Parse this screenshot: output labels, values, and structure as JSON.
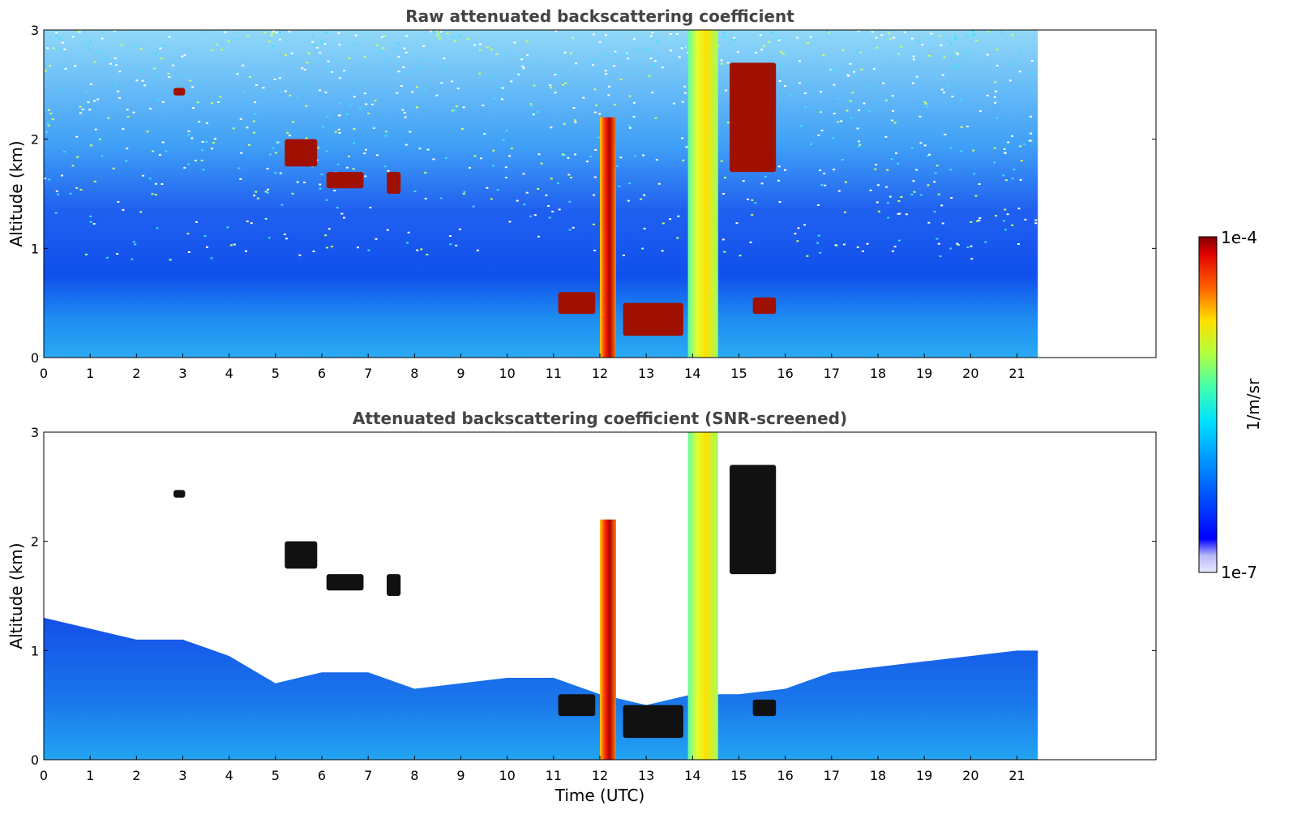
{
  "chart_data": [
    {
      "type": "heatmap",
      "title": "Raw attenuated backscattering coefficient",
      "xlabel": "",
      "ylabel": "Altitude (km)",
      "xlim": [
        0,
        24
      ],
      "ylim": [
        0,
        3
      ],
      "x_ticks": [
        "0",
        "1",
        "2",
        "3",
        "4",
        "5",
        "6",
        "7",
        "8",
        "9",
        "10",
        "11",
        "12",
        "13",
        "14",
        "15",
        "16",
        "17",
        "18",
        "19",
        "20",
        "21"
      ],
      "y_ticks": [
        "0",
        "1",
        "2",
        "3"
      ],
      "data_x_range": [
        0,
        21.45
      ],
      "colorscale": "jet",
      "features": [
        {
          "kind": "cloud",
          "time": [
            5.2,
            5.9
          ],
          "alt": [
            1.75,
            2.0
          ]
        },
        {
          "kind": "cloud",
          "time": [
            6.1,
            6.9
          ],
          "alt": [
            1.55,
            1.7
          ]
        },
        {
          "kind": "cloud",
          "time": [
            2.8,
            3.05
          ],
          "alt": [
            2.4,
            2.47
          ]
        },
        {
          "kind": "cloud",
          "time": [
            7.4,
            7.7
          ],
          "alt": [
            1.5,
            1.7
          ]
        },
        {
          "kind": "cloud",
          "time": [
            11.1,
            11.9
          ],
          "alt": [
            0.4,
            0.6
          ]
        },
        {
          "kind": "cloud",
          "time": [
            12.5,
            13.8
          ],
          "alt": [
            0.2,
            0.5
          ]
        },
        {
          "kind": "cloud",
          "time": [
            14.8,
            15.8
          ],
          "alt": [
            1.7,
            2.7
          ]
        },
        {
          "kind": "cloud",
          "time": [
            15.3,
            15.8
          ],
          "alt": [
            0.4,
            0.55
          ]
        },
        {
          "kind": "precipitation",
          "time": [
            12.0,
            12.35
          ],
          "alt": [
            0,
            2.2
          ]
        },
        {
          "kind": "precipitation",
          "time": [
            13.9,
            14.55
          ],
          "alt": [
            0,
            3.0
          ]
        }
      ]
    },
    {
      "type": "heatmap",
      "title": "Attenuated backscattering coefficient (SNR-screened)",
      "xlabel": "Time (UTC)",
      "ylabel": "Altitude (km)",
      "xlim": [
        0,
        24
      ],
      "ylim": [
        0,
        3
      ],
      "x_ticks": [
        "0",
        "1",
        "2",
        "3",
        "4",
        "5",
        "6",
        "7",
        "8",
        "9",
        "10",
        "11",
        "12",
        "13",
        "14",
        "15",
        "16",
        "17",
        "18",
        "19",
        "20",
        "21"
      ],
      "y_ticks": [
        "0",
        "1",
        "2",
        "3"
      ],
      "data_x_range": [
        0,
        21.45
      ],
      "colorscale": "jet",
      "boundary_layer_top_km": [
        [
          0,
          1.3
        ],
        [
          1,
          1.2
        ],
        [
          2,
          1.1
        ],
        [
          3,
          1.1
        ],
        [
          4,
          0.95
        ],
        [
          5,
          0.7
        ],
        [
          6,
          0.8
        ],
        [
          7,
          0.8
        ],
        [
          8,
          0.65
        ],
        [
          9,
          0.7
        ],
        [
          10,
          0.75
        ],
        [
          11,
          0.75
        ],
        [
          12,
          0.6
        ],
        [
          13,
          0.5
        ],
        [
          14,
          0.6
        ],
        [
          15,
          0.6
        ],
        [
          16,
          0.65
        ],
        [
          17,
          0.8
        ],
        [
          18,
          0.85
        ],
        [
          19,
          0.9
        ],
        [
          20,
          0.95
        ],
        [
          21,
          1.0
        ],
        [
          21.45,
          1.0
        ]
      ]
    }
  ],
  "colorbar": {
    "label": "1/m/sr",
    "max_label": "1e-4",
    "min_label": "1e-7",
    "scale": "log",
    "range": [
      1e-07,
      0.0001
    ]
  }
}
